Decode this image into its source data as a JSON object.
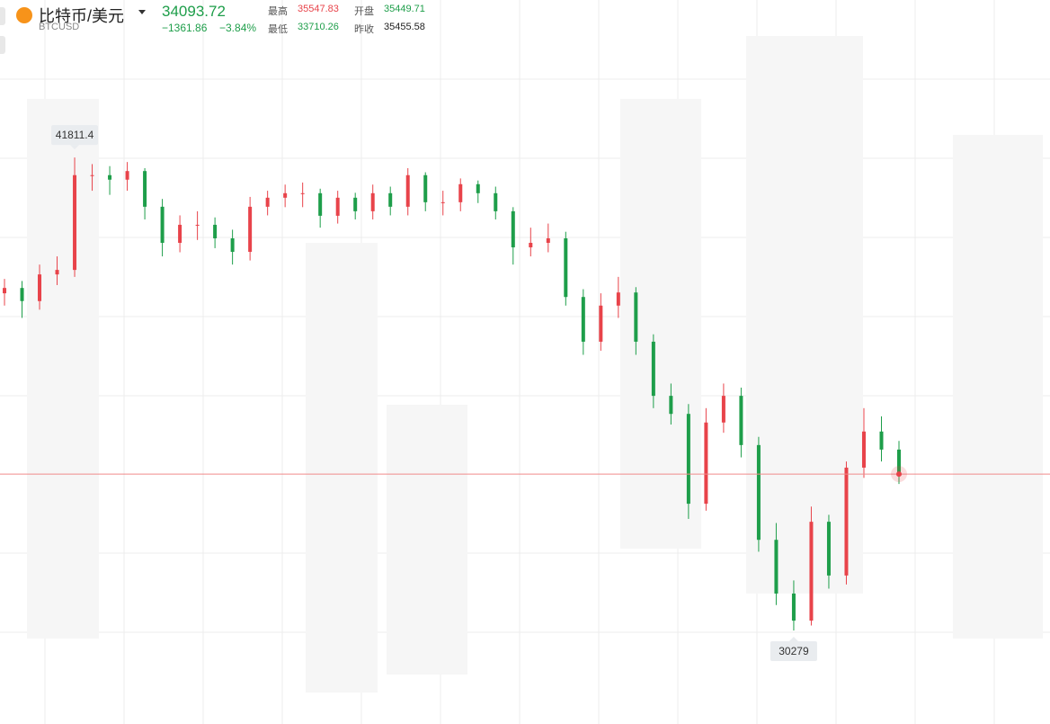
{
  "header": {
    "name": "比特币/美元",
    "symbol": "BTCUSD",
    "price": "34093.72",
    "change": "−1361.86",
    "change_pct": "−3.84%",
    "stats": [
      {
        "label": "最高",
        "value": "35547.83",
        "color": "#e8434a"
      },
      {
        "label": "开盘",
        "value": "35449.71",
        "color": "#1e9e4a"
      },
      {
        "label": "最低",
        "value": "33710.26",
        "color": "#1e9e4a"
      },
      {
        "label": "昨收",
        "value": "35455.58",
        "color": "#222222"
      }
    ]
  },
  "chart_data": {
    "type": "candlestick",
    "open": [
      38500,
      38630,
      38310,
      38960,
      39070,
      41380,
      41380,
      41270,
      41480,
      40610,
      39730,
      40170,
      40170,
      39840,
      39510,
      40610,
      40830,
      40940,
      40940,
      40390,
      40830,
      40500,
      40940,
      40610,
      41380,
      40720,
      40720,
      41160,
      40940,
      40500,
      39620,
      39730,
      39840,
      38410,
      37320,
      38200,
      38520,
      37320,
      36000,
      35560,
      33370,
      35350,
      36000,
      34800,
      32490,
      31180,
      30520,
      32930,
      31620,
      34250,
      35130,
      34690
    ],
    "high": [
      38850,
      38800,
      39200,
      39400,
      41811.4,
      41650,
      41600,
      41700,
      41550,
      40800,
      40400,
      40500,
      40350,
      40050,
      40850,
      41000,
      41150,
      41200,
      41050,
      41000,
      40950,
      41150,
      41100,
      41550,
      41450,
      41000,
      41300,
      41250,
      41100,
      40600,
      40100,
      40200,
      40000,
      38600,
      38500,
      38900,
      38650,
      37500,
      36300,
      35800,
      35700,
      36300,
      36200,
      35000,
      32900,
      31500,
      33300,
      33100,
      34400,
      35700,
      35500,
      34900
    ],
    "low": [
      38200,
      37900,
      38100,
      38700,
      38900,
      41000,
      40900,
      41000,
      40300,
      39400,
      39500,
      39800,
      39600,
      39200,
      39300,
      40400,
      40600,
      40600,
      40100,
      40200,
      40300,
      40300,
      40400,
      40400,
      40500,
      40400,
      40500,
      40700,
      40300,
      39200,
      39400,
      39500,
      38200,
      37000,
      37100,
      37900,
      37000,
      35700,
      35300,
      33000,
      33200,
      35100,
      34500,
      32200,
      30900,
      30279,
      30400,
      31300,
      31400,
      34000,
      34400,
      33850
    ],
    "close": [
      38630,
      38310,
      38960,
      39070,
      41380,
      41380,
      41270,
      41480,
      40610,
      39730,
      40170,
      40170,
      39840,
      39510,
      40610,
      40830,
      40940,
      40940,
      40390,
      40830,
      40500,
      40940,
      40610,
      41380,
      40720,
      40720,
      41160,
      40940,
      40500,
      39620,
      39730,
      39840,
      38410,
      37320,
      38200,
      38520,
      37320,
      36000,
      35560,
      33370,
      35350,
      36000,
      34800,
      32490,
      31180,
      30520,
      32930,
      31620,
      34250,
      35130,
      34690,
      34093.72
    ],
    "up_color": "#e8434a",
    "down_color": "#1e9e4a",
    "ylim": [
      28000,
      45650
    ],
    "max_label": 41811.4,
    "min_label": 30279
  }
}
